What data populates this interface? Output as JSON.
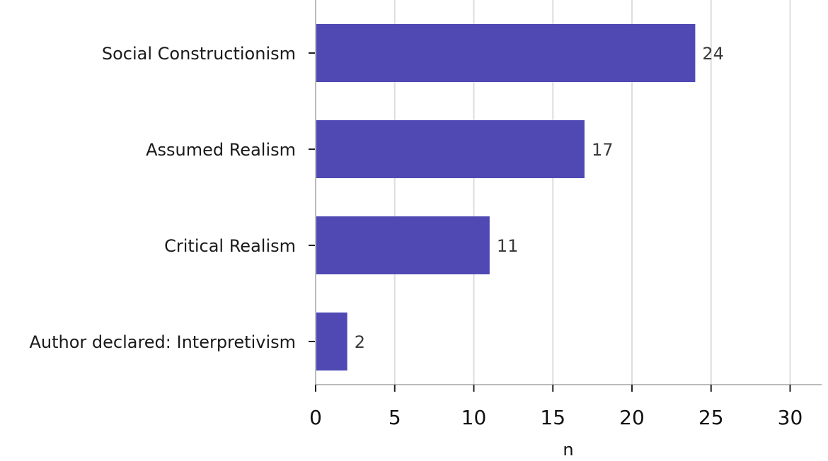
{
  "chart_data": {
    "type": "bar",
    "orientation": "horizontal",
    "categories": [
      "Social Constructionism",
      "Assumed Realism",
      "Critical Realism",
      "Author declared: Interpretivism"
    ],
    "values": [
      24,
      17,
      11,
      2
    ],
    "data_labels": [
      "24",
      "17",
      "11",
      "2"
    ],
    "xlabel": "n",
    "ylabel": "",
    "title": "",
    "xlim": [
      0,
      32
    ],
    "xticks": [
      0,
      5,
      10,
      15,
      20,
      25,
      30
    ],
    "grid": "vertical",
    "bar_color": "#5049b4"
  }
}
